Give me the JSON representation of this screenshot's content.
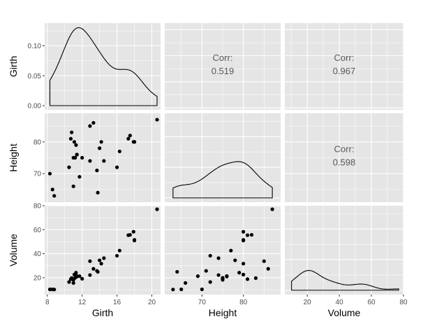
{
  "chart_data": {
    "type": "scatter",
    "variables": [
      "Girth",
      "Height",
      "Volume"
    ],
    "panel_background": "#e5e5e5",
    "grid_color": "#ffffff",
    "point_color": "#000000",
    "axes": {
      "Girth": {
        "range": [
          7.7,
          21.0
        ],
        "ticks": [
          8,
          12,
          16,
          20
        ],
        "tick_labels": [
          "8",
          "12",
          "16",
          "20"
        ]
      },
      "Height": {
        "range": [
          61.0,
          89.0
        ],
        "ticks": [
          70,
          80
        ],
        "tick_labels": [
          "70",
          "80"
        ]
      },
      "Volume": {
        "range": [
          6.0,
          80.0
        ],
        "ticks": [
          20,
          40,
          60,
          80
        ],
        "tick_labels": [
          "20",
          "40",
          "60",
          "80"
        ]
      }
    },
    "density_axis": {
      "range": [
        -0.007,
        0.138
      ],
      "ticks": [
        0.0,
        0.05,
        0.1
      ],
      "tick_labels": [
        "0.00",
        "0.05",
        "0.10"
      ]
    },
    "correlations": [
      {
        "row": "Girth",
        "col": "Height",
        "label": "Corr:",
        "value": "0.519"
      },
      {
        "row": "Girth",
        "col": "Volume",
        "label": "Corr:",
        "value": "0.967"
      },
      {
        "row": "Height",
        "col": "Volume",
        "label": "Corr:",
        "value": "0.598"
      }
    ],
    "series": {
      "Girth": [
        8.3,
        8.6,
        8.8,
        10.5,
        10.7,
        10.8,
        11.0,
        11.0,
        11.1,
        11.2,
        11.3,
        11.4,
        11.4,
        11.7,
        12.0,
        12.9,
        12.9,
        13.3,
        13.7,
        13.8,
        14.0,
        14.2,
        14.5,
        16.0,
        16.3,
        17.3,
        17.5,
        17.9,
        18.0,
        18.0,
        20.6
      ],
      "Height": [
        70,
        65,
        63,
        72,
        81,
        83,
        66,
        75,
        80,
        75,
        79,
        76,
        76,
        69,
        75,
        74,
        85,
        86,
        71,
        64,
        78,
        80,
        74,
        72,
        77,
        81,
        82,
        80,
        80,
        80,
        87
      ],
      "Volume": [
        10.3,
        10.3,
        10.2,
        16.4,
        18.8,
        19.7,
        15.6,
        18.2,
        22.6,
        19.9,
        24.2,
        21.0,
        21.4,
        21.3,
        19.1,
        22.2,
        33.8,
        27.4,
        25.7,
        24.9,
        34.5,
        31.7,
        36.3,
        38.3,
        42.6,
        55.4,
        55.7,
        58.3,
        51.5,
        51.0,
        77.0
      ]
    }
  }
}
